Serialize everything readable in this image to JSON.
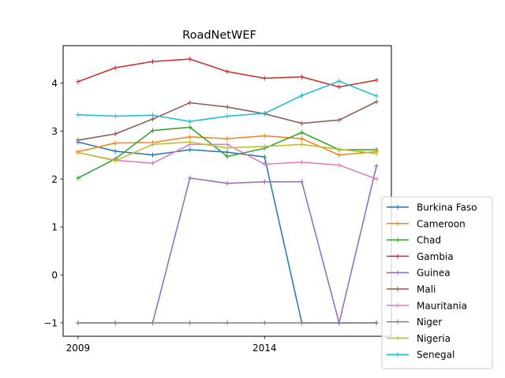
{
  "chart_data": {
    "type": "line",
    "title": "RoadNetWEF",
    "xlabel": "",
    "ylabel": "",
    "x": [
      2009,
      2010,
      2011,
      2012,
      2013,
      2014,
      2015,
      2016,
      2017
    ],
    "x_ticks": [
      "2009",
      "2014"
    ],
    "xlim": [
      2008.6,
      2017.4
    ],
    "y_ticks": [
      -1,
      0,
      1,
      2,
      3,
      4
    ],
    "ylim": [
      -1.28,
      4.78
    ],
    "grid": false,
    "legend_position": "outside-right-bottom",
    "series": [
      {
        "name": "Burkina Faso",
        "color": "#1f77b4",
        "values": [
          2.77,
          2.58,
          2.5,
          2.61,
          2.56,
          2.46,
          -1.0,
          -1.0,
          -1.0
        ]
      },
      {
        "name": "Cameroon",
        "color": "#ff7f0e",
        "values": [
          2.57,
          2.75,
          2.76,
          2.88,
          2.84,
          2.9,
          2.84,
          2.5,
          2.57
        ]
      },
      {
        "name": "Chad",
        "color": "#2ca02c",
        "values": [
          2.02,
          2.42,
          3.01,
          3.08,
          2.47,
          2.64,
          2.97,
          2.61,
          2.61
        ]
      },
      {
        "name": "Gambia",
        "color": "#d62728",
        "values": [
          4.03,
          4.32,
          4.45,
          4.5,
          4.24,
          4.1,
          4.13,
          3.92,
          4.06
        ]
      },
      {
        "name": "Guinea",
        "color": "#9467bd",
        "values": [
          -1.0,
          -1.0,
          -1.0,
          2.02,
          1.91,
          1.94,
          1.94,
          -1.0,
          2.27
        ]
      },
      {
        "name": "Mali",
        "color": "#8c564b",
        "values": [
          2.81,
          2.94,
          3.25,
          3.59,
          3.5,
          3.36,
          3.16,
          3.23,
          3.61
        ]
      },
      {
        "name": "Mauritania",
        "color": "#e377c2",
        "values": [
          2.55,
          2.39,
          2.33,
          2.72,
          2.72,
          2.31,
          2.35,
          2.29,
          2.0
        ]
      },
      {
        "name": "Niger",
        "color": "#7f7f7f",
        "values": [
          -1.0,
          -1.0,
          -1.0,
          -1.0,
          -1.0,
          -1.0,
          -1.0,
          -1.0,
          -1.0
        ]
      },
      {
        "name": "Nigeria",
        "color": "#bcbd22",
        "values": [
          2.55,
          2.38,
          2.72,
          2.77,
          2.65,
          2.68,
          2.72,
          2.62,
          2.53
        ]
      },
      {
        "name": "Senegal",
        "color": "#17becf",
        "values": [
          3.34,
          3.31,
          3.33,
          3.2,
          3.31,
          3.37,
          3.74,
          4.04,
          3.73
        ]
      }
    ]
  }
}
